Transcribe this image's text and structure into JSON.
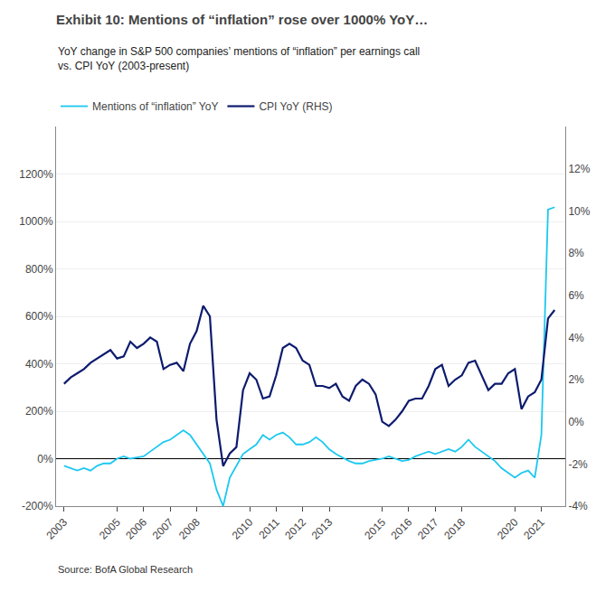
{
  "chart_data": {
    "type": "line",
    "title": "Exhibit 10: Mentions of “inflation” rose over 1000% YoY…",
    "subtitle": "YoY change in S&P 500 companies’ mentions of “inflation” per earnings call\nvs. CPI YoY (2003-present)",
    "annotations": [
      "Source: BofA Global Research"
    ],
    "x": [
      2003.0,
      2003.25,
      2003.5,
      2003.75,
      2004.0,
      2004.25,
      2004.5,
      2004.75,
      2005.0,
      2005.25,
      2005.5,
      2005.75,
      2006.0,
      2006.25,
      2006.5,
      2006.75,
      2007.0,
      2007.25,
      2007.5,
      2007.75,
      2008.0,
      2008.25,
      2008.5,
      2008.75,
      2009.0,
      2009.25,
      2009.5,
      2009.75,
      2010.0,
      2010.25,
      2010.5,
      2010.75,
      2011.0,
      2011.25,
      2011.5,
      2011.75,
      2012.0,
      2012.25,
      2012.5,
      2012.75,
      2013.0,
      2013.25,
      2013.5,
      2013.75,
      2014.0,
      2014.25,
      2014.5,
      2014.75,
      2015.0,
      2015.25,
      2015.5,
      2015.75,
      2016.0,
      2016.25,
      2016.5,
      2016.75,
      2017.0,
      2017.25,
      2017.5,
      2017.75,
      2018.0,
      2018.25,
      2018.5,
      2018.75,
      2019.0,
      2019.25,
      2019.5,
      2019.75,
      2020.0,
      2020.25,
      2020.5,
      2020.75,
      2021.0,
      2021.25,
      2021.5
    ],
    "series": [
      {
        "name": "Mentions of “inflation” YoY",
        "color": "#1BC8F0",
        "values": [
          -30,
          -40,
          -50,
          -40,
          -50,
          -30,
          -20,
          -20,
          0,
          10,
          0,
          5,
          10,
          30,
          50,
          70,
          80,
          100,
          120,
          100,
          60,
          20,
          -20,
          -130,
          -200,
          -80,
          -30,
          20,
          40,
          60,
          100,
          80,
          100,
          110,
          90,
          60,
          60,
          70,
          90,
          70,
          40,
          20,
          5,
          -10,
          -20,
          -20,
          -10,
          -5,
          0,
          10,
          0,
          -10,
          -5,
          10,
          20,
          30,
          20,
          30,
          40,
          30,
          50,
          80,
          50,
          30,
          10,
          -10,
          -40,
          -60,
          -80,
          -60,
          -50,
          -80,
          100,
          1050,
          1060
        ]
      },
      {
        "name": "CPI YoY (RHS)",
        "color": "#0D1B6E",
        "axis": "y2",
        "values": [
          1.8,
          2.1,
          2.3,
          2.5,
          2.8,
          3.0,
          3.2,
          3.4,
          3.0,
          3.1,
          3.8,
          3.5,
          3.7,
          4.0,
          3.8,
          2.5,
          2.7,
          2.8,
          2.4,
          3.7,
          4.3,
          5.5,
          5.0,
          0.1,
          -2.1,
          -1.5,
          -1.2,
          1.5,
          2.3,
          2.0,
          1.1,
          1.2,
          2.2,
          3.5,
          3.7,
          3.5,
          2.9,
          2.7,
          1.7,
          1.7,
          1.6,
          1.8,
          1.2,
          1.0,
          1.7,
          2.0,
          1.8,
          1.3,
          0.0,
          -0.2,
          0.1,
          0.5,
          1.0,
          1.1,
          1.1,
          1.7,
          2.5,
          2.7,
          1.7,
          2.0,
          2.2,
          2.8,
          2.9,
          2.2,
          1.5,
          1.8,
          1.8,
          2.3,
          2.5,
          0.6,
          1.2,
          1.4,
          2.0,
          4.9,
          5.3
        ]
      }
    ],
    "xlim": [
      2002.7,
      2021.9
    ],
    "xticks": [
      2003,
      2005,
      2006,
      2007,
      2008,
      2010,
      2011,
      2012,
      2013,
      2015,
      2016,
      2017,
      2018,
      2020,
      2021
    ],
    "ylim": [
      -200,
      1400
    ],
    "yticks": [
      {
        "value": -200,
        "label": "-200%"
      },
      {
        "value": 0,
        "label": "0%"
      },
      {
        "value": 200,
        "label": "200%"
      },
      {
        "value": 400,
        "label": "400%"
      },
      {
        "value": 600,
        "label": "600%"
      },
      {
        "value": 800,
        "label": "800%"
      },
      {
        "value": 1000,
        "label": "1000%"
      },
      {
        "value": 1200,
        "label": "1200%"
      }
    ],
    "y2lim": [
      -4,
      14
    ],
    "y2ticks": [
      {
        "value": -4,
        "label": "-4%"
      },
      {
        "value": -2,
        "label": "-2%"
      },
      {
        "value": 0,
        "label": "0%"
      },
      {
        "value": 2,
        "label": "2%"
      },
      {
        "value": 4,
        "label": "4%"
      },
      {
        "value": 6,
        "label": "6%"
      },
      {
        "value": 8,
        "label": "8%"
      },
      {
        "value": 10,
        "label": "10%"
      },
      {
        "value": 12,
        "label": "12%"
      }
    ],
    "grid": true,
    "legend": "top left"
  }
}
